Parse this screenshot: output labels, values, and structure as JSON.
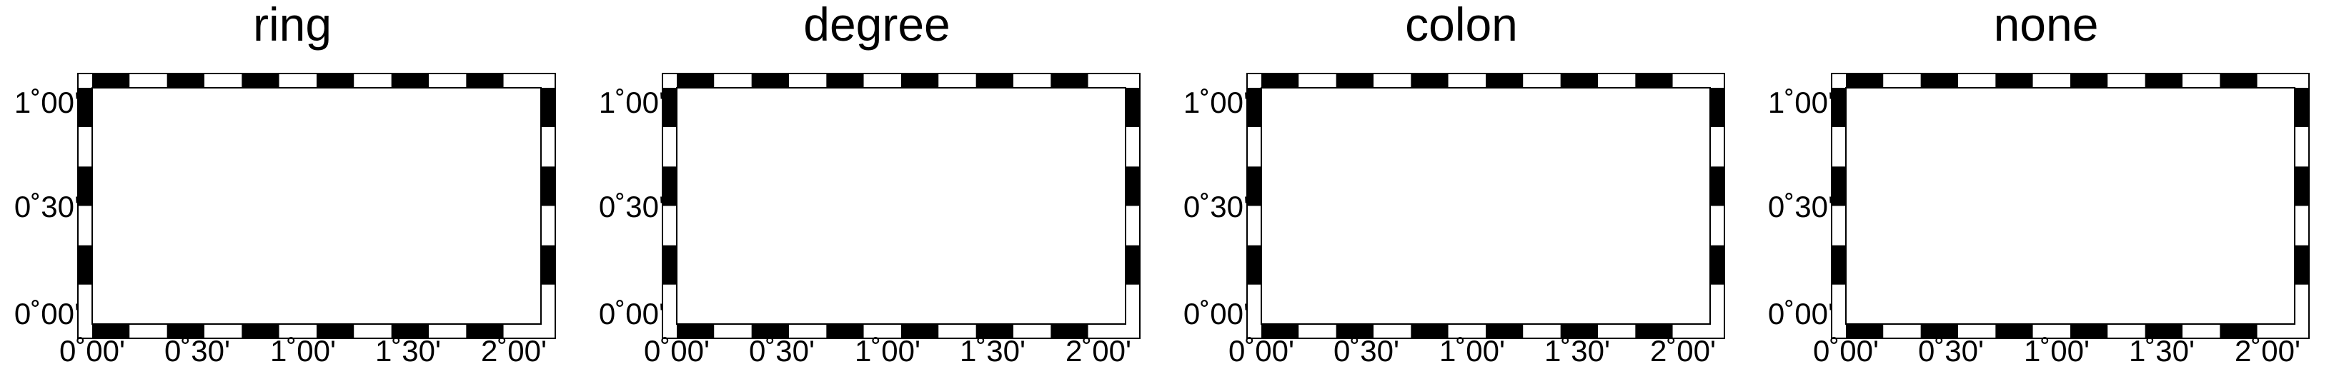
{
  "panels": [
    {
      "title": "ring"
    },
    {
      "title": "degree"
    },
    {
      "title": "colon"
    },
    {
      "title": "none"
    }
  ],
  "axes": {
    "x_tick_labels": [
      "0˚00'",
      "0˚30'",
      "1˚00'",
      "1˚30'",
      "2˚00'"
    ],
    "y_tick_labels": [
      "1˚00'",
      "0˚30'",
      "0˚00'"
    ],
    "x_range": [
      0,
      2
    ],
    "y_range": [
      0,
      1
    ]
  },
  "colors": {
    "frame_dark": "#000000",
    "frame_light": "#ffffff"
  }
}
